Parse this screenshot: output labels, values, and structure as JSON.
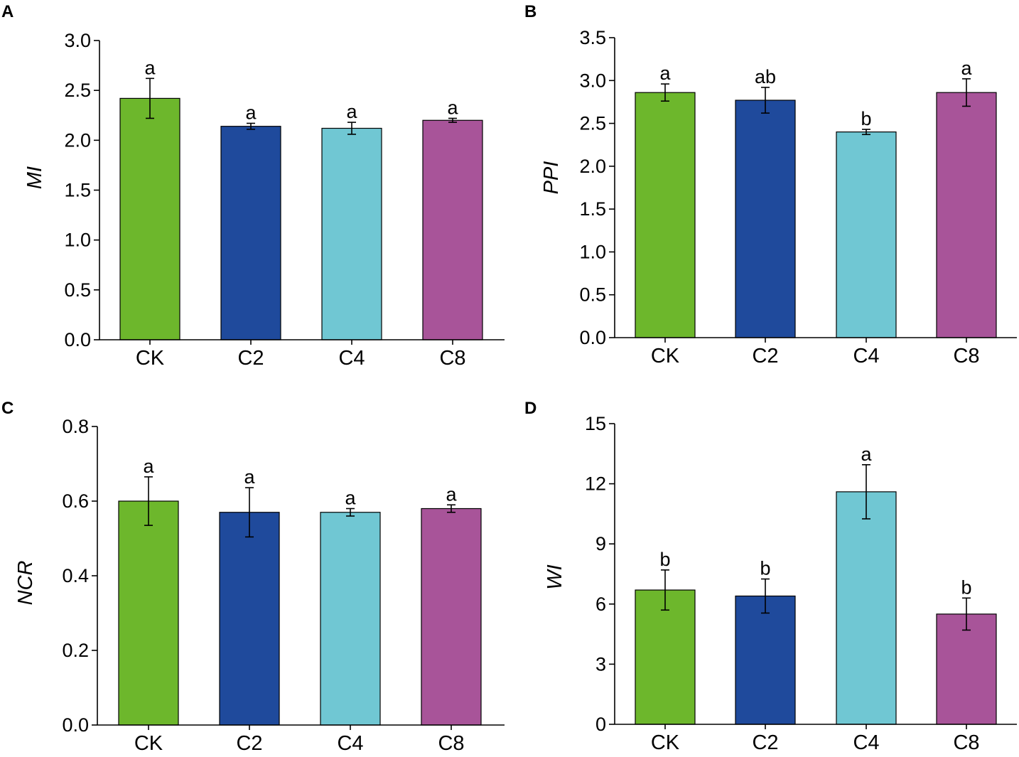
{
  "chart_data": [
    {
      "panel": "A",
      "type": "bar",
      "ylabel": "MI",
      "categories": [
        "CK",
        "C2",
        "C4",
        "C8"
      ],
      "values": [
        2.42,
        2.14,
        2.12,
        2.2
      ],
      "errors": [
        0.2,
        0.03,
        0.06,
        0.02
      ],
      "significance": [
        "a",
        "a",
        "a",
        "a"
      ],
      "ylim": [
        0,
        3.0
      ],
      "yticks": [
        0.0,
        0.5,
        1.0,
        1.5,
        2.0,
        2.5,
        3.0
      ],
      "ytick_labels": [
        "0.0",
        "0.5",
        "1.0",
        "1.5",
        "2.0",
        "2.5",
        "3.0"
      ]
    },
    {
      "panel": "B",
      "type": "bar",
      "ylabel": "PPI",
      "categories": [
        "CK",
        "C2",
        "C4",
        "C8"
      ],
      "values": [
        2.86,
        2.77,
        2.4,
        2.86
      ],
      "errors": [
        0.1,
        0.15,
        0.03,
        0.16
      ],
      "significance": [
        "a",
        "ab",
        "b",
        "a"
      ],
      "ylim": [
        0,
        3.5
      ],
      "yticks": [
        0.0,
        0.5,
        1.0,
        1.5,
        2.0,
        2.5,
        3.0,
        3.5
      ],
      "ytick_labels": [
        "0.0",
        "0.5",
        "1.0",
        "1.5",
        "2.0",
        "2.5",
        "3.0",
        "3.5"
      ]
    },
    {
      "panel": "C",
      "type": "bar",
      "ylabel": "NCR",
      "categories": [
        "CK",
        "C2",
        "C4",
        "C8"
      ],
      "values": [
        0.6,
        0.57,
        0.57,
        0.58
      ],
      "errors": [
        0.065,
        0.066,
        0.01,
        0.01
      ],
      "significance": [
        "a",
        "a",
        "a",
        "a"
      ],
      "ylim": [
        0,
        0.8
      ],
      "yticks": [
        0.0,
        0.2,
        0.4,
        0.6,
        0.8
      ],
      "ytick_labels": [
        "0.0",
        "0.2",
        "0.4",
        "0.6",
        "0.8"
      ]
    },
    {
      "panel": "D",
      "type": "bar",
      "ylabel": "WI",
      "categories": [
        "CK",
        "C2",
        "C4",
        "C8"
      ],
      "values": [
        6.7,
        6.4,
        11.6,
        5.5
      ],
      "errors": [
        1.0,
        0.85,
        1.35,
        0.8
      ],
      "significance": [
        "b",
        "b",
        "a",
        "b"
      ],
      "ylim": [
        0,
        15
      ],
      "yticks": [
        0,
        3,
        6,
        9,
        12,
        15
      ],
      "ytick_labels": [
        "0",
        "3",
        "6",
        "9",
        "12",
        "15"
      ]
    }
  ],
  "colors": {
    "CK": "#6db72c",
    "C2": "#1f4a9c",
    "C4": "#70c7d3",
    "C8": "#a85499"
  }
}
